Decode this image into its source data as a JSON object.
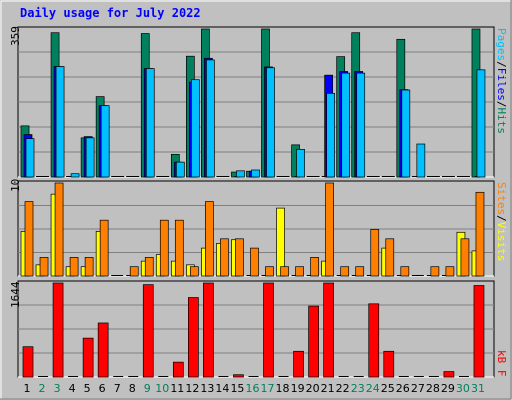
{
  "title": "Daily usage for July 2022",
  "colors": {
    "background": "#c0c0c0",
    "plot_bg": "#c0c0c0",
    "hits": "#00805c",
    "files": "#0000ff",
    "pages": "#00c0ff",
    "visits": "#ffff00",
    "sites": "#ff8000",
    "kbytes": "#ff0000",
    "weekend_label": "#00805c",
    "weekday_label": "#000000",
    "title": "#0000ff"
  },
  "right_labels": {
    "top": [
      {
        "text": "Pages",
        "color": "#00c0ff"
      },
      {
        "text": "/",
        "color": "#000000"
      },
      {
        "text": "Files",
        "color": "#0000ff"
      },
      {
        "text": "/",
        "color": "#000000"
      },
      {
        "text": "Hits",
        "color": "#00805c"
      }
    ],
    "mid": [
      {
        "text": "Sites",
        "color": "#ff8000"
      },
      {
        "text": "/",
        "color": "#000000"
      },
      {
        "text": "Visits",
        "color": "#ffff00"
      }
    ],
    "bot": [
      {
        "text": "kB F",
        "color": "#ff0000"
      }
    ]
  },
  "chart_data": {
    "type": "bar",
    "title": "Daily usage for July 2022",
    "categories": [
      "1",
      "2",
      "3",
      "4",
      "5",
      "6",
      "7",
      "8",
      "9",
      "10",
      "11",
      "12",
      "13",
      "14",
      "15",
      "16",
      "17",
      "18",
      "19",
      "20",
      "21",
      "22",
      "23",
      "24",
      "25",
      "26",
      "27",
      "28",
      "29",
      "30",
      "31"
    ],
    "weekend_days": [
      "2",
      "3",
      "9",
      "10",
      "16",
      "17",
      "23",
      "24",
      "30",
      "31"
    ],
    "panels": [
      {
        "name": "top",
        "ymax": 359,
        "ymax_label": "359",
        "series": [
          {
            "name": "Hits",
            "values": [
              124,
              0,
              350,
              0,
              95,
              195,
              0,
              0,
              348,
              0,
              55,
              293,
              362,
              0,
              12,
              14,
              365,
              0,
              78,
              0,
              0,
              292,
              350,
              0,
              0,
              334,
              0,
              0,
              0,
              0,
              360
            ]
          },
          {
            "name": "Files",
            "values": [
              103,
              0,
              268,
              0,
              98,
              173,
              0,
              0,
              263,
              0,
              36,
              230,
              288,
              0,
              0,
              14,
              267,
              0,
              0,
              0,
              247,
              256,
              256,
              0,
              0,
              212,
              0,
              0,
              0,
              0,
              0
            ]
          },
          {
            "name": "Pages",
            "values": [
              93,
              0,
              268,
              8,
              95,
              173,
              0,
              0,
              263,
              0,
              36,
              236,
              284,
              0,
              15,
              17,
              265,
              0,
              67,
              0,
              203,
              252,
              252,
              0,
              0,
              211,
              80,
              0,
              0,
              0,
              260
            ]
          }
        ]
      },
      {
        "name": "mid",
        "ymax": 10,
        "ymax_label": "10",
        "series": [
          {
            "name": "Visits",
            "values": [
              4.8,
              1.2,
              8.8,
              1.0,
              1.0,
              4.8,
              0,
              0,
              1.6,
              2.3,
              1.6,
              1.2,
              3.0,
              3.5,
              3.9,
              0,
              0,
              7.3,
              0,
              0,
              1.6,
              0,
              0,
              0,
              3.0,
              0,
              0,
              0,
              0,
              4.7,
              2.7
            ]
          },
          {
            "name": "Sites",
            "values": [
              8.0,
              2.0,
              10.0,
              2.0,
              2.0,
              6.0,
              0,
              1.0,
              2.0,
              6.0,
              6.0,
              1.0,
              8.0,
              4.0,
              4.0,
              3.0,
              1.0,
              1.0,
              1.0,
              2.0,
              10.0,
              1.0,
              1.0,
              5.0,
              4.0,
              1.0,
              0,
              1.0,
              1.0,
              4.0,
              9.0
            ]
          }
        ]
      },
      {
        "name": "bot",
        "ymax": 1644,
        "ymax_label": "1644",
        "series": [
          {
            "name": "kB F",
            "values": [
              530,
              0,
              1670,
              0,
              680,
              945,
              0,
              0,
              1615,
              0,
              260,
              1390,
              1700,
              0,
              40,
              0,
              1680,
              0,
              450,
              1240,
              1660,
              0,
              0,
              1280,
              450,
              0,
              0,
              0,
              95,
              0,
              1600
            ]
          }
        ]
      }
    ]
  }
}
